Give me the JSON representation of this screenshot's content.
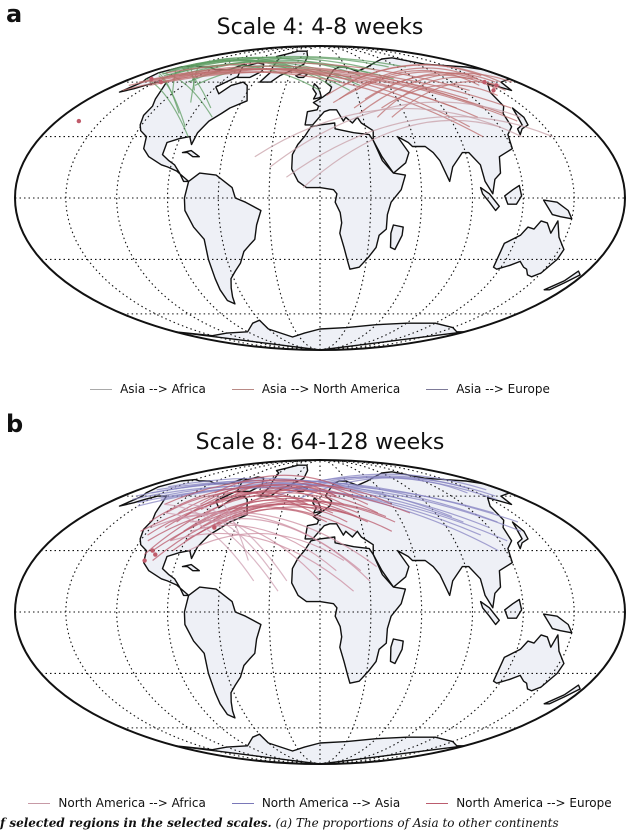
{
  "panels": [
    {
      "letter": "a",
      "title": "Scale 4: 4-8 weeks",
      "legend": [
        {
          "label": "Asia --> Africa",
          "color": "#a9a9a9"
        },
        {
          "label": "Asia --> North America",
          "color": "#b98a86"
        },
        {
          "label": "Asia --> Europe",
          "color": "#7d7a98"
        }
      ],
      "flows": [
        {
          "color": "#5f9e63",
          "pairs": [
            [
              [
                -165,
                66
              ],
              [
                -75,
                40
              ]
            ],
            [
              [
                -160,
                64
              ],
              [
                -90,
                35
              ]
            ],
            [
              [
                -168,
                66
              ],
              [
                -100,
                42
              ]
            ],
            [
              [
                -162,
                70
              ],
              [
                -80,
                45
              ]
            ],
            [
              [
                -158,
                68
              ],
              [
                -118,
                52
              ]
            ],
            [
              [
                -150,
                72
              ],
              [
                -98,
                48
              ]
            ],
            [
              [
                -165,
                62
              ],
              [
                -85,
                30
              ]
            ],
            [
              [
                -156,
                71
              ],
              [
                -105,
                55
              ]
            ],
            [
              [
                20,
                60
              ],
              [
                -165,
                68
              ]
            ],
            [
              [
                30,
                62
              ],
              [
                -160,
                66
              ]
            ],
            [
              [
                10,
                58
              ],
              [
                -150,
                70
              ]
            ],
            [
              [
                40,
                64
              ],
              [
                -155,
                72
              ]
            ],
            [
              [
                60,
                68
              ],
              [
                -150,
                68
              ]
            ],
            [
              [
                25,
                55
              ],
              [
                -120,
                60
              ]
            ],
            [
              [
                -20,
                66
              ],
              [
                -160,
                65
              ]
            ],
            [
              [
                50,
                66
              ],
              [
                -140,
                64
              ]
            ],
            [
              [
                80,
                70
              ],
              [
                -130,
                66
              ]
            ],
            [
              [
                0,
                55
              ],
              [
                -150,
                62
              ]
            ],
            [
              [
                100,
                70
              ],
              [
                -160,
                70
              ]
            ],
            [
              [
                35,
                58
              ],
              [
                -110,
                58
              ]
            ],
            [
              [
                -30,
                70
              ],
              [
                -150,
                66
              ]
            ],
            [
              [
                70,
                62
              ],
              [
                -155,
                64
              ]
            ]
          ]
        },
        {
          "color": "#bd6d6d",
          "pairs": [
            [
              [
                -158,
                62
              ],
              [
                110,
                40
              ]
            ],
            [
              [
                -150,
                64
              ],
              [
                120,
                45
              ]
            ],
            [
              [
                -165,
                60
              ],
              [
                130,
                42
              ]
            ],
            [
              [
                -140,
                62
              ],
              [
                100,
                35
              ]
            ],
            [
              [
                -160,
                66
              ],
              [
                125,
                55
              ]
            ],
            [
              [
                -155,
                60
              ],
              [
                105,
                30
              ]
            ],
            [
              [
                -168,
                58
              ],
              [
                115,
                50
              ]
            ],
            [
              [
                -150,
                58
              ],
              [
                135,
                38
              ]
            ],
            [
              [
                -165,
                55
              ],
              [
                100,
                45
              ]
            ],
            [
              [
                -145,
                60
              ],
              [
                140,
                45
              ]
            ],
            [
              [
                150,
                62
              ],
              [
                15,
                50
              ]
            ],
            [
              [
                160,
                60
              ],
              [
                25,
                45
              ]
            ],
            [
              [
                140,
                58
              ],
              [
                30,
                55
              ]
            ],
            [
              [
                155,
                55
              ],
              [
                10,
                48
              ]
            ],
            [
              [
                145,
                62
              ],
              [
                40,
                40
              ]
            ],
            [
              [
                165,
                60
              ],
              [
                20,
                58
              ]
            ],
            [
              [
                150,
                56
              ],
              [
                35,
                50
              ]
            ],
            [
              [
                160,
                64
              ],
              [
                5,
                52
              ]
            ],
            [
              [
                142,
                52
              ],
              [
                45,
                45
              ]
            ],
            [
              [
                158,
                58
              ],
              [
                50,
                40
              ]
            ],
            [
              [
                175,
                60
              ],
              [
                28,
                42
              ]
            ]
          ]
        },
        {
          "color": "#c8a0a8",
          "pairs": [
            [
              [
                140,
                40
              ],
              [
                -30,
                15
              ]
            ],
            [
              [
                150,
                30
              ],
              [
                -20,
                10
              ]
            ],
            [
              [
                120,
                35
              ],
              [
                -10,
                5
              ]
            ],
            [
              [
                130,
                30
              ],
              [
                -40,
                20
              ]
            ]
          ]
        }
      ],
      "markers": [
        [
          -160,
          62
        ],
        [
          -145,
          60
        ],
        [
          150,
          60
        ],
        [
          155,
          58
        ],
        [
          145,
          55
        ],
        [
          -165,
          38
        ]
      ]
    },
    {
      "letter": "b",
      "title": "Scale 8: 64-128 weeks",
      "legend": [
        {
          "label": "North America --> Africa",
          "color": "#c79aa6"
        },
        {
          "label": "North America --> Asia",
          "color": "#7a78b8"
        },
        {
          "label": "North America --> Europe",
          "color": "#bb5c6e"
        }
      ],
      "flows": [
        {
          "color": "#8886c3",
          "pairs": [
            [
              [
                -160,
                62
              ],
              [
                120,
                42
              ]
            ],
            [
              [
                -150,
                64
              ],
              [
                130,
                45
              ]
            ],
            [
              [
                -165,
                58
              ],
              [
                110,
                38
              ]
            ],
            [
              [
                -158,
                66
              ],
              [
                100,
                48
              ]
            ],
            [
              [
                -145,
                60
              ],
              [
                140,
                40
              ]
            ],
            [
              [
                -155,
                56
              ],
              [
                125,
                35
              ]
            ],
            [
              [
                -168,
                60
              ],
              [
                105,
                45
              ]
            ],
            [
              [
                -150,
                54
              ],
              [
                135,
                50
              ]
            ],
            [
              [
                -140,
                58
              ],
              [
                115,
                30
              ]
            ],
            [
              [
                -162,
                64
              ],
              [
                145,
                45
              ]
            ],
            [
              [
                150,
                65
              ],
              [
                -40,
                60
              ]
            ],
            [
              [
                160,
                60
              ],
              [
                -30,
                62
              ]
            ],
            [
              [
                140,
                62
              ],
              [
                -20,
                58
              ]
            ],
            [
              [
                155,
                58
              ],
              [
                -45,
                64
              ]
            ],
            [
              [
                165,
                64
              ],
              [
                -25,
                66
              ]
            ]
          ]
        },
        {
          "color": "#bb5c6e",
          "pairs": [
            [
              [
                -80,
                45
              ],
              [
                0,
                55
              ]
            ],
            [
              [
                -95,
                40
              ],
              [
                10,
                50
              ]
            ],
            [
              [
                -110,
                50
              ],
              [
                20,
                55
              ]
            ],
            [
              [
                -100,
                35
              ],
              [
                30,
                50
              ]
            ],
            [
              [
                -85,
                42
              ],
              [
                20,
                45
              ]
            ],
            [
              [
                -120,
                50
              ],
              [
                -5,
                50
              ]
            ],
            [
              [
                -90,
                48
              ],
              [
                40,
                55
              ]
            ],
            [
              [
                -105,
                45
              ],
              [
                15,
                60
              ]
            ],
            [
              [
                -115,
                35
              ],
              [
                25,
                40
              ]
            ],
            [
              [
                -75,
                42
              ],
              [
                5,
                45
              ]
            ],
            [
              [
                -100,
                55
              ],
              [
                30,
                60
              ]
            ],
            [
              [
                -125,
                45
              ],
              [
                10,
                55
              ]
            ],
            [
              [
                -85,
                38
              ],
              [
                35,
                45
              ]
            ],
            [
              [
                -110,
                42
              ],
              [
                45,
                50
              ]
            ],
            [
              [
                -95,
                52
              ],
              [
                -10,
                55
              ]
            ],
            [
              [
                -118,
                38
              ],
              [
                28,
                48
              ]
            ],
            [
              [
                -100,
                62
              ],
              [
                25,
                65
              ]
            ],
            [
              [
                -80,
                60
              ],
              [
                15,
                60
              ]
            ],
            [
              [
                -130,
                55
              ],
              [
                40,
                60
              ]
            ],
            [
              [
                -90,
                35
              ],
              [
                50,
                40
              ]
            ],
            [
              [
                -105,
                25
              ],
              [
                20,
                50
              ]
            ],
            [
              [
                -112,
                28
              ],
              [
                10,
                58
              ]
            ],
            [
              [
                -108,
                30
              ],
              [
                55,
                45
              ]
            ],
            [
              [
                -70,
                50
              ],
              [
                60,
                55
              ]
            ],
            [
              [
                -95,
                30
              ],
              [
                50,
                48
              ]
            ],
            [
              [
                -125,
                40
              ],
              [
                70,
                50
              ]
            ]
          ]
        },
        {
          "color": "#cc8ea0",
          "pairs": [
            [
              [
                -90,
                40
              ],
              [
                10,
                20
              ]
            ],
            [
              [
                -100,
                35
              ],
              [
                20,
                10
              ]
            ],
            [
              [
                -80,
                45
              ],
              [
                30,
                15
              ]
            ],
            [
              [
                -95,
                45
              ],
              [
                0,
                15
              ]
            ],
            [
              [
                -110,
                45
              ],
              [
                25,
                20
              ]
            ],
            [
              [
                -85,
                30
              ],
              [
                15,
                25
              ]
            ],
            [
              [
                -120,
                42
              ],
              [
                35,
                22
              ]
            ]
          ]
        },
        {
          "color": "#cfa0b3",
          "pairs": [
            [
              [
                -120,
                50
              ],
              [
                -40,
                15
              ]
            ],
            [
              [
                -100,
                50
              ],
              [
                -30,
                20
              ]
            ],
            [
              [
                -110,
                55
              ],
              [
                -20,
                15
              ]
            ],
            [
              [
                -95,
                60
              ],
              [
                -45,
                25
              ]
            ],
            [
              [
                -130,
                55
              ],
              [
                -25,
                10
              ]
            ]
          ]
        }
      ],
      "markers": [
        [
          -105,
          28
        ],
        [
          -108,
          30
        ],
        [
          -110,
          25
        ],
        [
          -75,
          42
        ]
      ]
    }
  ],
  "caption": {
    "bold": "f selected regions in the selected scales.",
    "text": " (a) The proportions of Asia to other continents"
  }
}
